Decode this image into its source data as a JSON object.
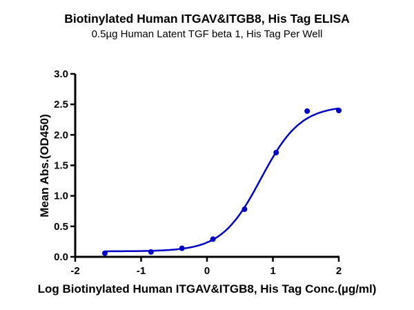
{
  "chart_data": {
    "type": "scatter",
    "title": "Biotinylated Human ITGAV&ITGB8, His Tag ELISA",
    "subtitle": "0.5µg Human Latent TGF beta 1, His Tag Per Well",
    "xlabel": "Log Biotinylated Human ITGAV&ITGB8, His Tag Conc.(µg/ml)",
    "ylabel": "Mean Abs.(OD450)",
    "xlim": [
      -2,
      2
    ],
    "ylim": [
      0,
      3.0
    ],
    "xticks": [
      "-2",
      "-1",
      "0",
      "1",
      "2"
    ],
    "yticks": [
      "0.0",
      "0.5",
      "1.0",
      "1.5",
      "2.0",
      "2.5",
      "3.0"
    ],
    "grid": false,
    "legend": null,
    "series": [
      {
        "name": "Mean Abs.(OD450)",
        "color": "#0000c8",
        "fit": "4-parameter logistic curve",
        "x": [
          -1.55,
          -0.85,
          -0.38,
          0.09,
          0.57,
          1.05,
          1.52,
          2.0
        ],
        "values": [
          0.06,
          0.08,
          0.14,
          0.29,
          0.78,
          1.71,
          2.39,
          2.4
        ]
      }
    ]
  }
}
